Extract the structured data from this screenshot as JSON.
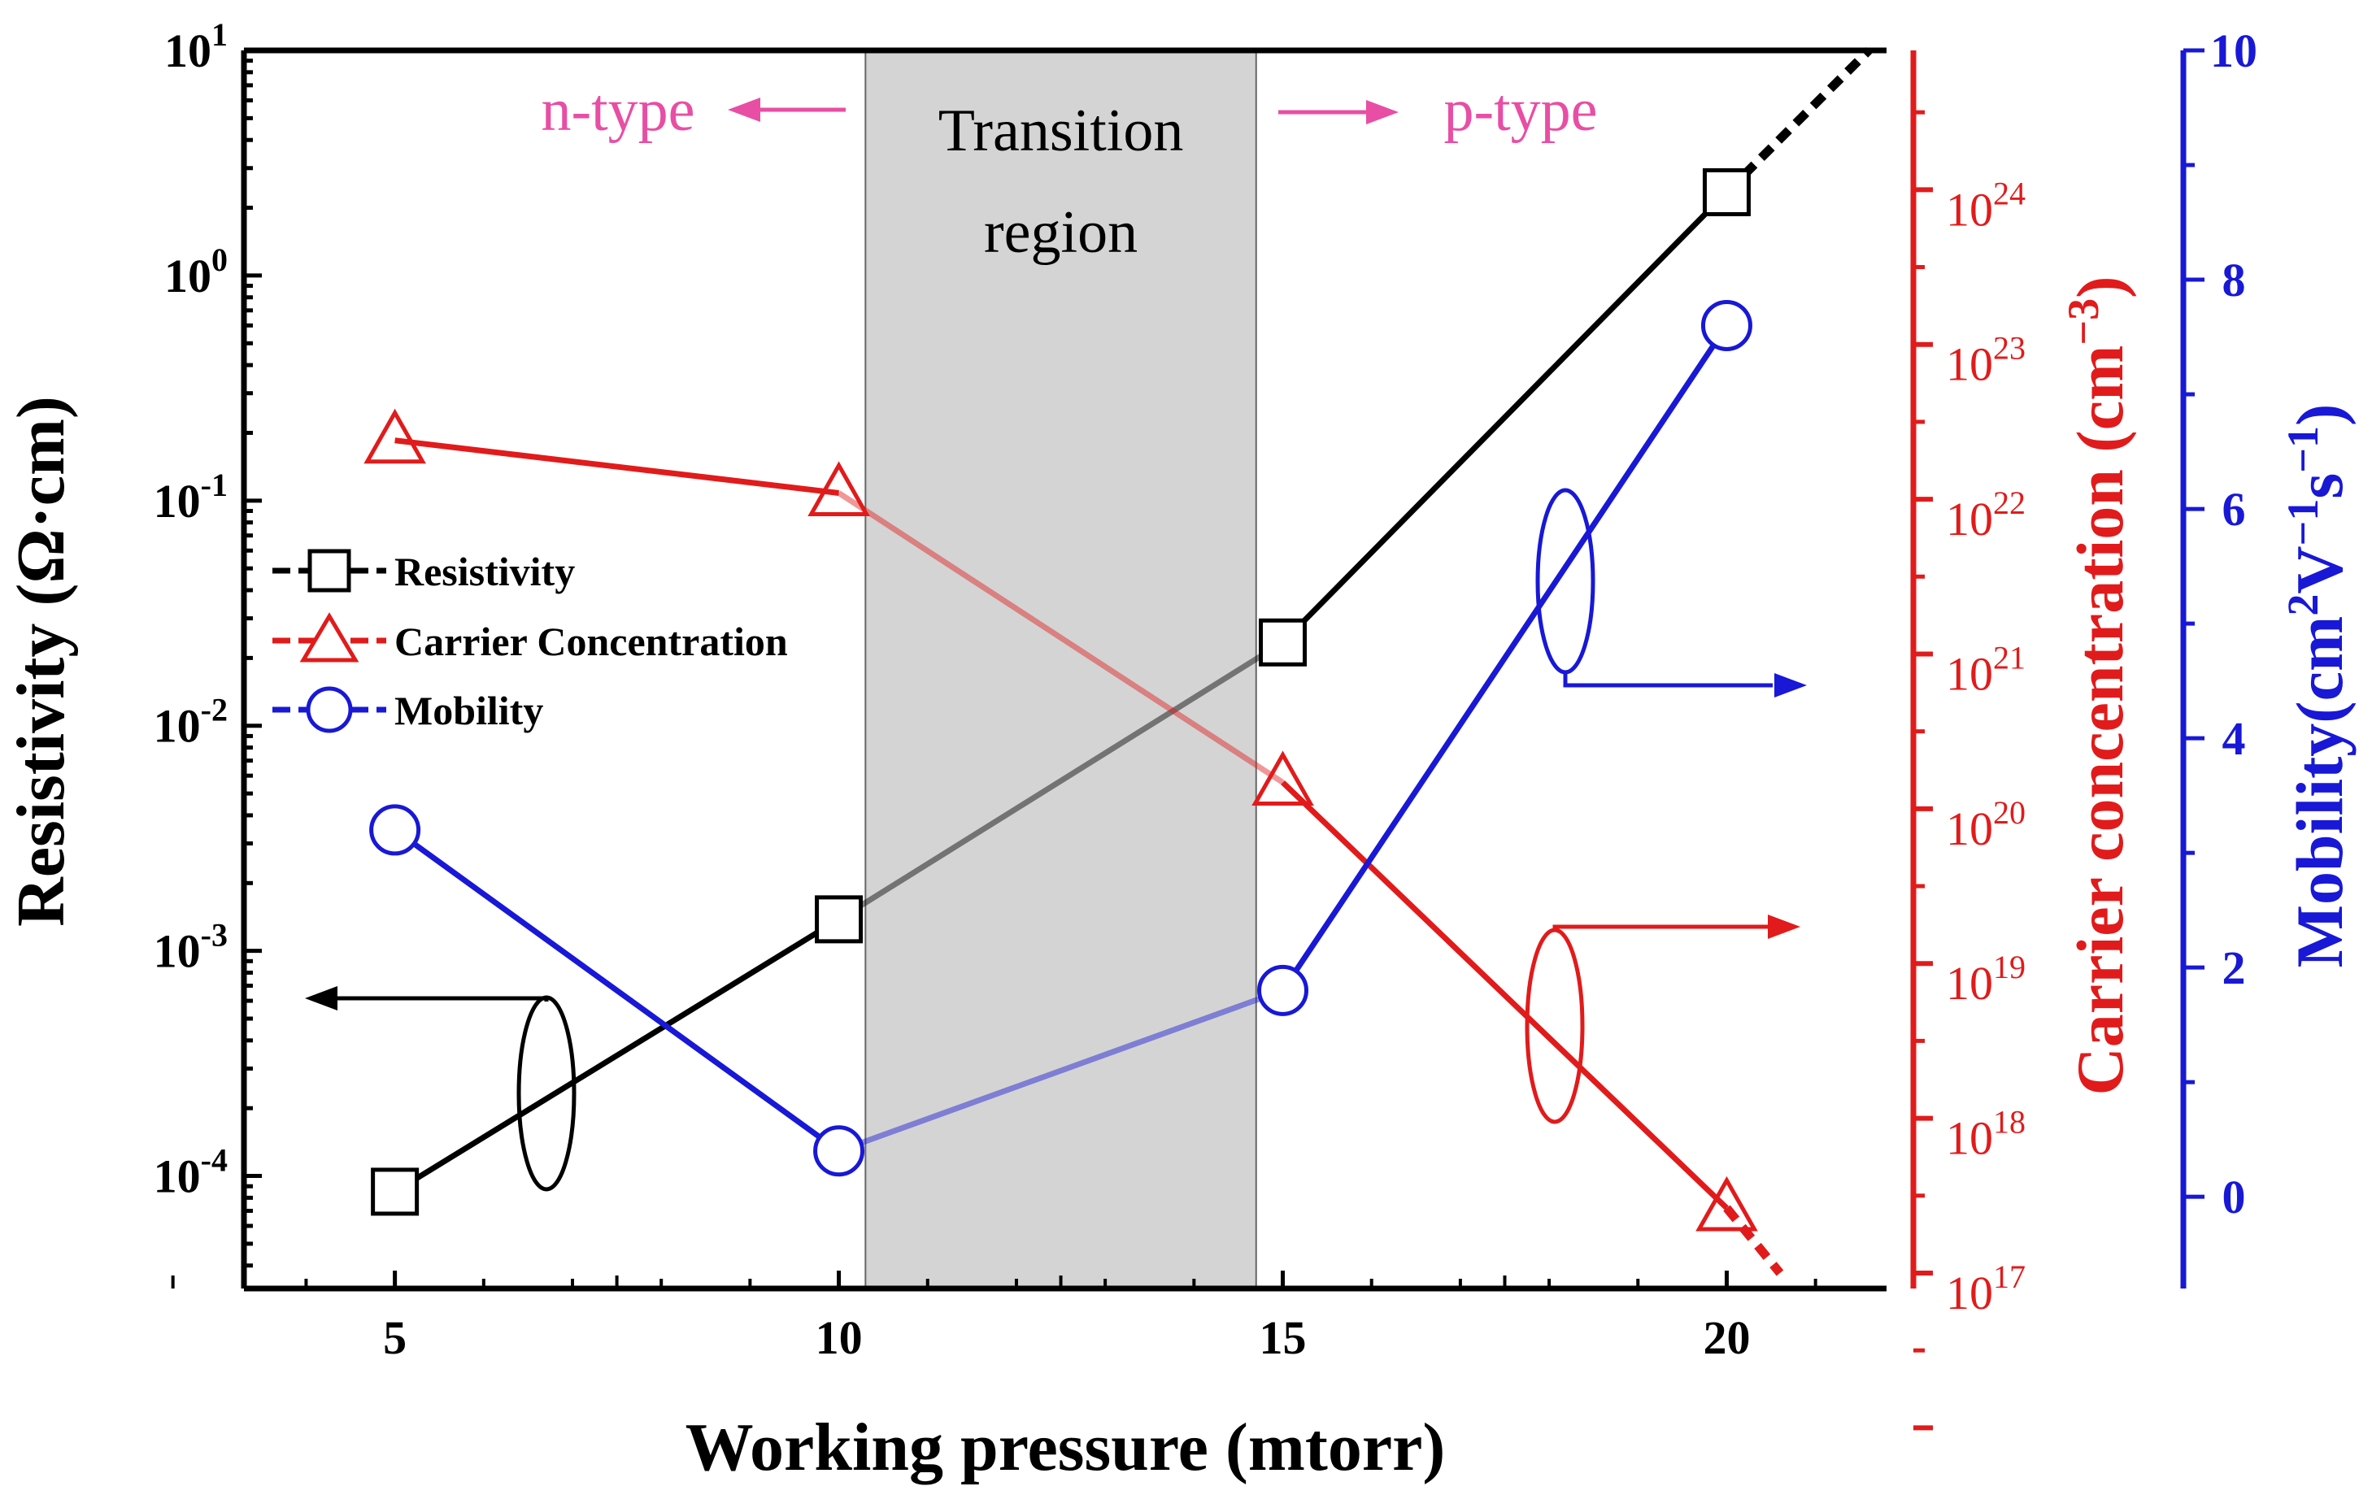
{
  "chart_data": {
    "type": "line",
    "xlabel": "Working pressure (mtorr)",
    "xlim": [
      3.3,
      21.8
    ],
    "x_ticks": [
      5,
      10,
      15,
      20
    ],
    "y_left": {
      "label_text": "Resistivity (Ω·cm)",
      "scale": "log",
      "range_log10": [
        -4.5,
        1
      ],
      "ticks": [
        {
          "base": "10",
          "exp": "1",
          "value_log10": 1
        },
        {
          "base": "10",
          "exp": "0",
          "value_log10": 0
        },
        {
          "base": "10",
          "exp": "-1",
          "value_log10": -1
        },
        {
          "base": "10",
          "exp": "-2",
          "value_log10": -2
        },
        {
          "base": "10",
          "exp": "-3",
          "value_log10": -3
        },
        {
          "base": "10",
          "exp": "-4",
          "value_log10": -4
        }
      ]
    },
    "y_carrier": {
      "label_text": "Carrier concentration (cm",
      "label_exp": "−3",
      "label_close": ")",
      "scale": "log",
      "range_log10": [
        16.9,
        24.9
      ],
      "ticks": [
        {
          "base": "10",
          "exp": "24",
          "value_log10": 24
        },
        {
          "base": "10",
          "exp": "23",
          "value_log10": 23
        },
        {
          "base": "10",
          "exp": "22",
          "value_log10": 22
        },
        {
          "base": "10",
          "exp": "21",
          "value_log10": 21
        },
        {
          "base": "10",
          "exp": "20",
          "value_log10": 20
        },
        {
          "base": "10",
          "exp": "19",
          "value_log10": 19
        },
        {
          "base": "10",
          "exp": "18",
          "value_log10": 18
        },
        {
          "base": "10",
          "exp": "17",
          "value_log10": 17
        }
      ]
    },
    "y_mobility": {
      "label_text": "Mobility(cm",
      "label_exp1": "2",
      "label_mid": "V",
      "label_exp2": "−1",
      "label_mid2": "s",
      "label_exp3": "−1",
      "label_close": ")",
      "range": [
        -0.8,
        10
      ],
      "ticks": [
        0,
        2,
        4,
        6,
        8,
        10
      ]
    },
    "series": [
      {
        "name": "Resistivity",
        "axis": "left",
        "color": "#000000",
        "marker": "square",
        "x": [
          5,
          10,
          15,
          20
        ],
        "log10_values": [
          -4.07,
          -2.86,
          -1.63,
          0.37
        ],
        "extrapolated_to": {
          "x": 21.6,
          "log10": 1.0
        }
      },
      {
        "name": "Carrier Concentration",
        "axis": "carrier",
        "color": "#e11b1b",
        "marker": "triangle",
        "x": [
          5,
          10,
          15,
          20
        ],
        "log10_values": [
          22.38,
          22.04,
          20.17,
          17.42
        ],
        "extrapolated_to": {
          "x": 20.6,
          "log10": 17.0
        }
      },
      {
        "name": "Mobility",
        "axis": "mobility",
        "color": "#1818d6",
        "marker": "circle",
        "x": [
          5,
          10,
          15,
          20
        ],
        "values": [
          3.2,
          0.4,
          1.8,
          7.6
        ]
      }
    ],
    "legend": {
      "position": "left-middle",
      "entries": [
        "Resistivity",
        "Carrier Concentration",
        "Mobility"
      ]
    },
    "shaded_region": {
      "x_start": 10.3,
      "x_end": 14.7,
      "label_line1": "Transition",
      "label_line2": "region",
      "color": "#d4d4d4"
    },
    "annotations": {
      "left": "n-type",
      "right": "p-type",
      "pink": "#e84ea4"
    },
    "colors": {
      "black": "#000000",
      "red": "#e11b1b",
      "blue": "#1818d6"
    }
  }
}
